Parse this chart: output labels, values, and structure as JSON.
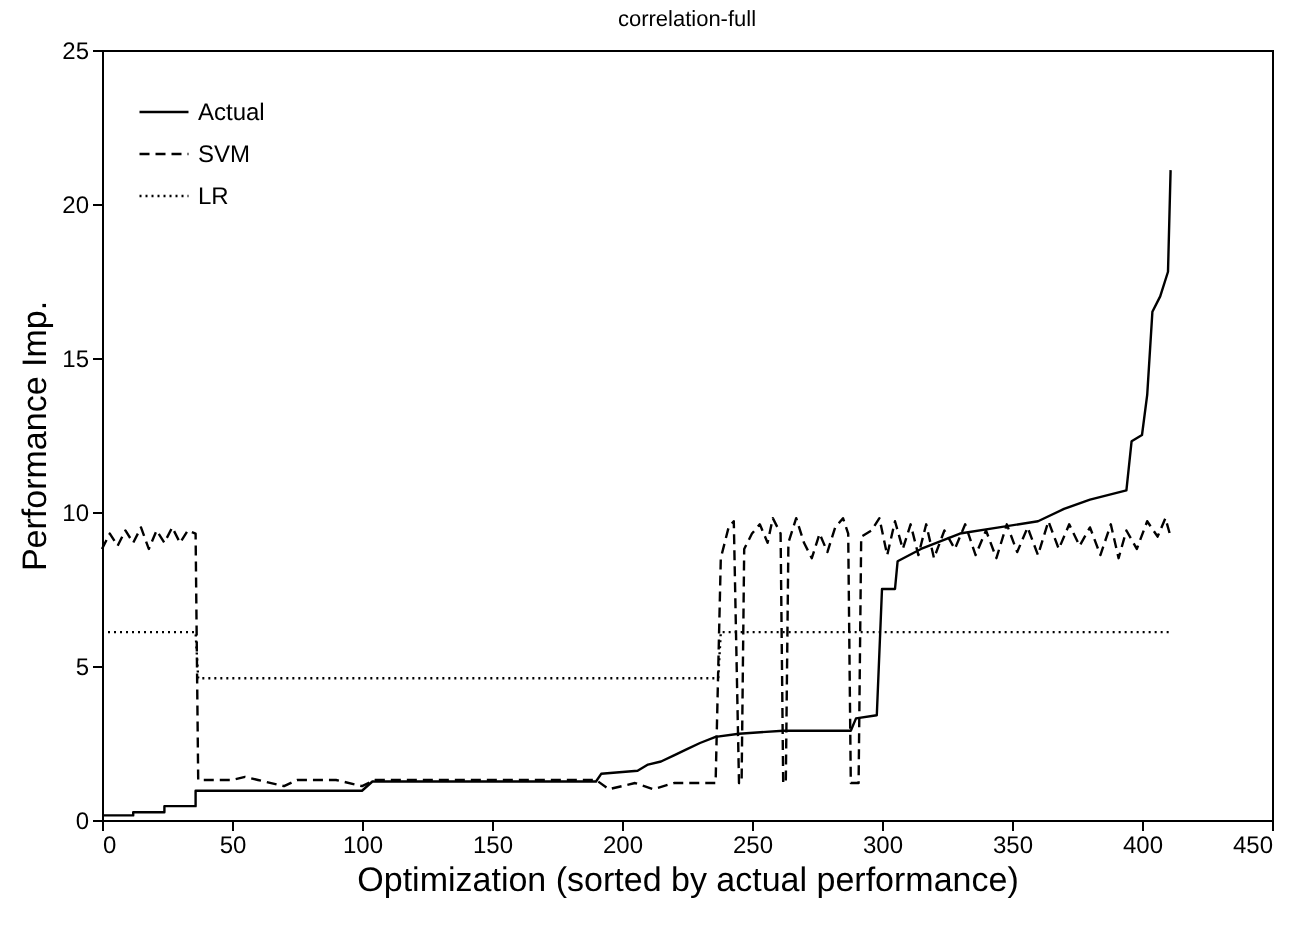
{
  "chart_data": {
    "type": "line",
    "title": "correlation-full",
    "xlabel": "Optimization (sorted by actual performance)",
    "ylabel": "Performance Imp.",
    "xlim": [
      0,
      450
    ],
    "ylim": [
      0,
      25
    ],
    "xticks": [
      0,
      50,
      100,
      150,
      200,
      250,
      300,
      350,
      400,
      450
    ],
    "yticks": [
      0,
      5,
      10,
      15,
      20,
      25
    ],
    "legend": "top left",
    "grid": false,
    "series": [
      {
        "name": "Actual",
        "color": "#000000",
        "line_style": "solid",
        "x": [
          0,
          12,
          12,
          24,
          24,
          36,
          36,
          100,
          104,
          190,
          192,
          206,
          210,
          215,
          220,
          225,
          230,
          236,
          245,
          262,
          288,
          290,
          298,
          300,
          305,
          306,
          315,
          330,
          345,
          360,
          370,
          380,
          394,
          396,
          400,
          402,
          404,
          407,
          410,
          411
        ],
        "values": [
          0.15,
          0.15,
          0.25,
          0.25,
          0.45,
          0.45,
          0.95,
          0.95,
          1.25,
          1.25,
          1.5,
          1.6,
          1.8,
          1.9,
          2.1,
          2.3,
          2.5,
          2.7,
          2.8,
          2.9,
          2.9,
          3.3,
          3.4,
          7.5,
          7.5,
          8.4,
          8.8,
          9.3,
          9.5,
          9.7,
          10.1,
          10.4,
          10.7,
          12.3,
          12.5,
          13.8,
          16.5,
          17.0,
          17.8,
          21.1
        ]
      },
      {
        "name": "SVM",
        "color": "#000000",
        "line_style": "dashed",
        "x": [
          0,
          3,
          6,
          9,
          12,
          15,
          18,
          21,
          24,
          27,
          30,
          33,
          36,
          37,
          50,
          55,
          60,
          70,
          75,
          90,
          100,
          105,
          150,
          190,
          195,
          205,
          212,
          220,
          236,
          238,
          241,
          243,
          245,
          246,
          247,
          250,
          253,
          256,
          258,
          261,
          262,
          263,
          264,
          267,
          270,
          273,
          276,
          279,
          282,
          285,
          287,
          288,
          291,
          292,
          296,
          299,
          302,
          305,
          308,
          311,
          314,
          317,
          320,
          324,
          328,
          332,
          336,
          340,
          344,
          348,
          352,
          356,
          360,
          364,
          368,
          372,
          376,
          380,
          384,
          388,
          391,
          394,
          398,
          402,
          406,
          409,
          411
        ],
        "values": [
          8.8,
          9.3,
          8.9,
          9.4,
          9.0,
          9.5,
          8.8,
          9.4,
          9.0,
          9.5,
          9.0,
          9.4,
          9.3,
          1.3,
          1.3,
          1.4,
          1.3,
          1.1,
          1.3,
          1.3,
          1.1,
          1.3,
          1.3,
          1.3,
          1.0,
          1.2,
          1.0,
          1.2,
          1.2,
          8.5,
          9.5,
          9.7,
          1.2,
          1.2,
          8.8,
          9.3,
          9.6,
          9.0,
          9.8,
          9.3,
          1.2,
          1.2,
          9.0,
          9.8,
          9.0,
          8.5,
          9.3,
          8.7,
          9.5,
          9.8,
          9.3,
          1.2,
          1.2,
          9.2,
          9.4,
          9.8,
          8.6,
          9.7,
          8.8,
          9.6,
          8.6,
          9.6,
          8.5,
          9.4,
          8.8,
          9.6,
          8.6,
          9.4,
          8.5,
          9.6,
          8.7,
          9.5,
          8.6,
          9.7,
          8.8,
          9.6,
          8.9,
          9.5,
          8.6,
          9.6,
          8.5,
          9.4,
          8.8,
          9.7,
          9.2,
          9.8,
          9.2
        ]
      },
      {
        "name": "LR",
        "color": "#000000",
        "line_style": "dotted",
        "x": [
          0,
          36,
          37,
          237,
          238,
          411
        ],
        "values": [
          6.1,
          6.1,
          4.6,
          4.6,
          6.1,
          6.1
        ]
      }
    ]
  }
}
